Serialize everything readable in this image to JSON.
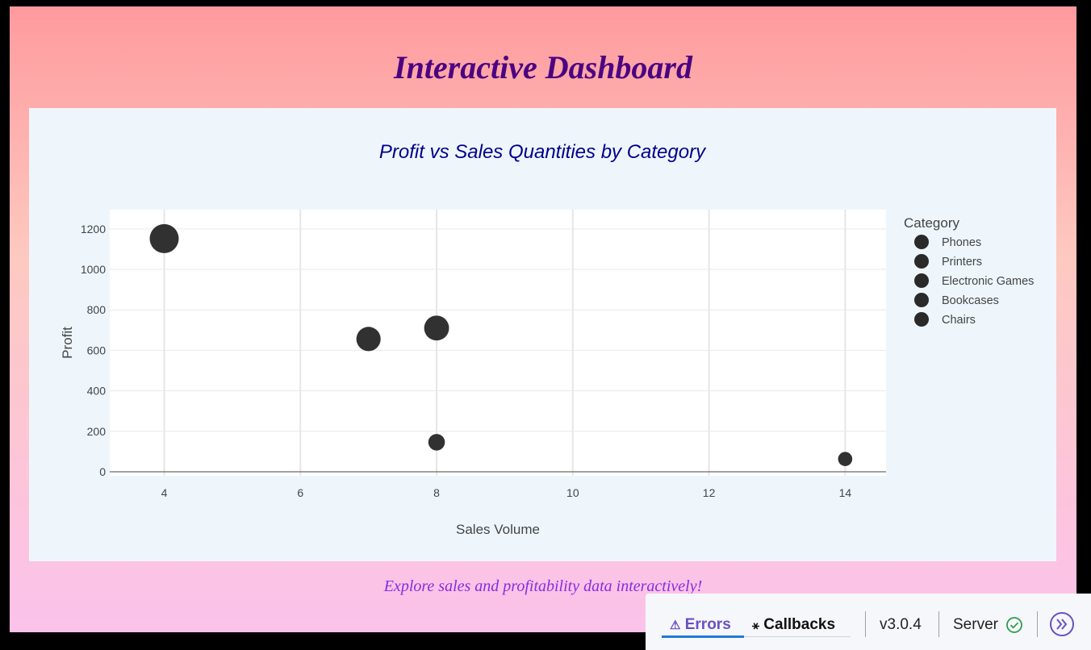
{
  "page": {
    "title": "Interactive Dashboard",
    "subtitle": "Explore sales and profitability data interactively!"
  },
  "colors": {
    "marker": "#2a2a2a",
    "title": "#4b0082",
    "chart_title": "#00008b",
    "subtitle": "#8a2be2"
  },
  "chart_data": {
    "type": "scatter",
    "title": "Profit vs Sales Quantities by Category",
    "xlabel": "Sales Volume",
    "ylabel": "Profit",
    "xlim": [
      3.2,
      14.6
    ],
    "ylim": [
      -20,
      1295
    ],
    "xticks": [
      4,
      6,
      8,
      10,
      12,
      14
    ],
    "yticks": [
      0,
      200,
      400,
      600,
      800,
      1000,
      1200
    ],
    "grid": true,
    "legend_title": "Category",
    "legend_position": "right",
    "size_encodes": "Profit",
    "series": [
      {
        "name": "Phones",
        "points": [
          {
            "x": 4,
            "y": 1152
          }
        ]
      },
      {
        "name": "Printers",
        "points": [
          {
            "x": 8,
            "y": 710
          }
        ]
      },
      {
        "name": "Electronic Games",
        "points": [
          {
            "x": 7,
            "y": 656
          }
        ]
      },
      {
        "name": "Bookcases",
        "points": [
          {
            "x": 8,
            "y": 146
          }
        ]
      },
      {
        "name": "Chairs",
        "points": [
          {
            "x": 14,
            "y": 63
          }
        ]
      }
    ]
  },
  "devbar": {
    "errors_label": "Errors",
    "callbacks_label": "Callbacks",
    "version": "v3.0.4",
    "server_label": "Server"
  }
}
